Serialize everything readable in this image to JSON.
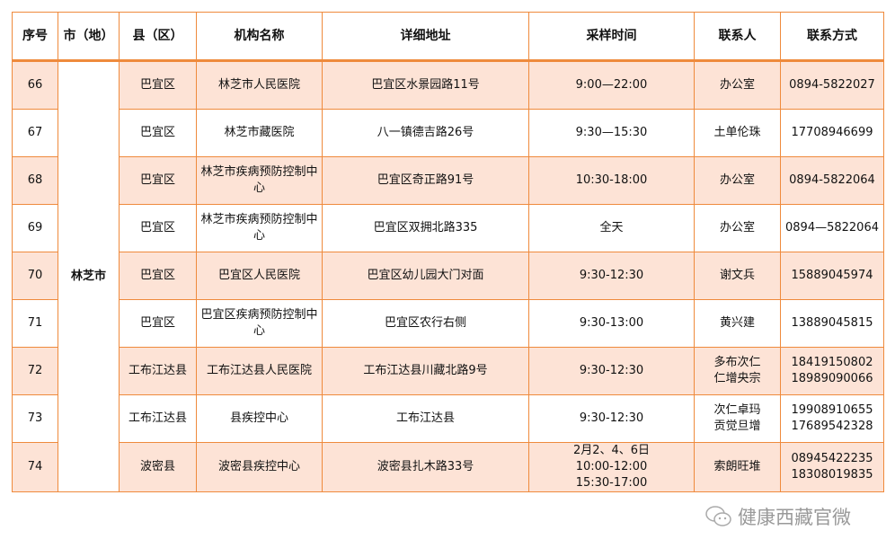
{
  "headers": [
    "序号",
    "市（地）",
    "县（区）",
    "机构名称",
    "详细地址",
    "采样时间",
    "联系人",
    "联系方式"
  ],
  "city": "林芝市",
  "rows": [
    {
      "no": "66",
      "county": "巴宜区",
      "org": "林芝市人民医院",
      "addr": "巴宜区水景园路11号",
      "time": "9:00—22:00",
      "contact": "办公室",
      "phone": "0894-5822027"
    },
    {
      "no": "67",
      "county": "巴宜区",
      "org": "林芝市藏医院",
      "addr": "八一镇德吉路26号",
      "time": "9:30—15:30",
      "contact": "土单伦珠",
      "phone": "17708946699"
    },
    {
      "no": "68",
      "county": "巴宜区",
      "org": "林芝市疾病预防控制中心",
      "addr": "巴宜区奇正路91号",
      "time": "10:30-18:00",
      "contact": "办公室",
      "phone": "0894-5822064"
    },
    {
      "no": "69",
      "county": "巴宜区",
      "org": "林芝市疾病预防控制中心",
      "addr": "巴宜区双拥北路335",
      "time": "全天",
      "contact": "办公室",
      "phone": "0894—5822064"
    },
    {
      "no": "70",
      "county": "巴宜区",
      "org": "巴宜区人民医院",
      "addr": "巴宜区幼儿园大门对面",
      "time": "9:30-12:30",
      "contact": "谢文兵",
      "phone": "15889045974"
    },
    {
      "no": "71",
      "county": "巴宜区",
      "org": "巴宜区疾病预防控制中心",
      "addr": "巴宜区农行右侧",
      "time": "9:30-13:00",
      "contact": "黄兴建",
      "phone": "13889045815"
    },
    {
      "no": "72",
      "county": "工布江达县",
      "org": "工布江达县人民医院",
      "addr": "工布江达县川藏北路9号",
      "time": "9:30-12:30",
      "contact": "多布次仁\n仁增央宗",
      "phone": "18419150802\n18989090066"
    },
    {
      "no": "73",
      "county": "工布江达县",
      "org": "县疾控中心",
      "addr": "工布江达县",
      "time": "9:30-12:30",
      "contact": "次仁卓玛\n贡觉旦增",
      "phone": "19908910655\n17689542328"
    },
    {
      "no": "74",
      "county": "波密县",
      "org": "波密县疾控中心",
      "addr": "波密县扎木路33号",
      "time": "2月2、4、6日\n10:00-12:00\n15:30-17:00",
      "contact": "索朗旺堆",
      "phone": "08945422235\n18308019835"
    }
  ],
  "watermark": "健康西藏官微",
  "colors": {
    "border": "#ef8a3c",
    "shade": "#fde3d6"
  }
}
